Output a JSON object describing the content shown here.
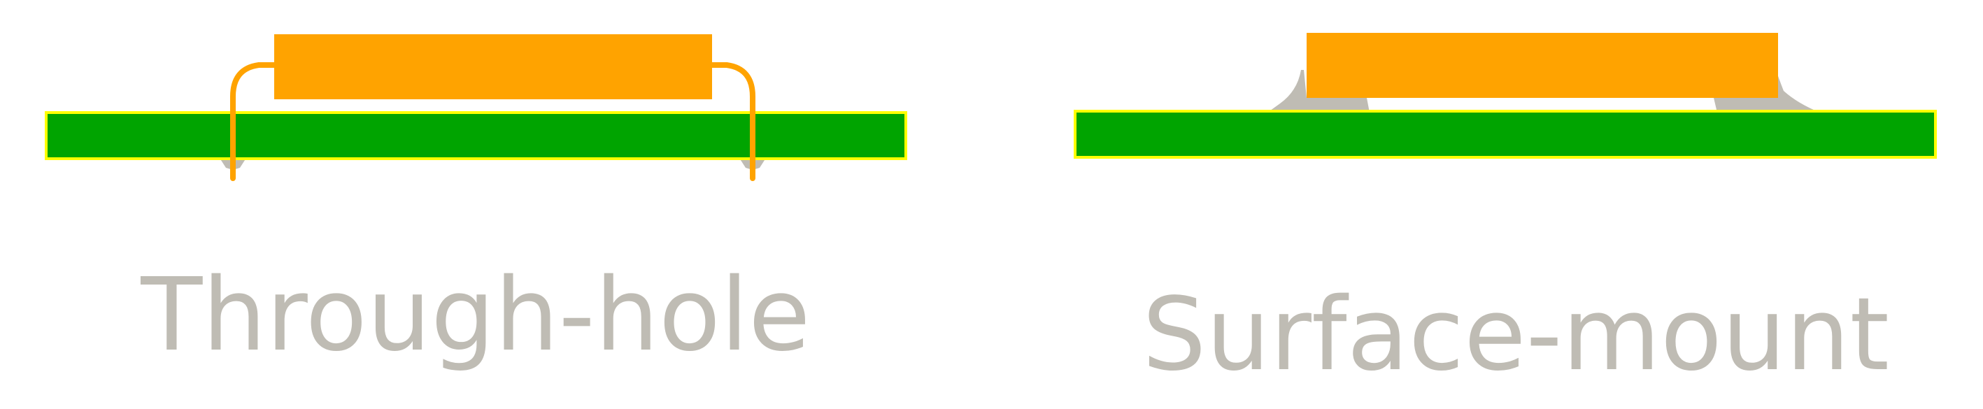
{
  "labels": {
    "through_hole": "Through-hole",
    "surface_mount": "Surface-mount"
  },
  "colors": {
    "board": "#00a400",
    "board_outline": "#ffff00",
    "component": "#ffa300",
    "solder": "#bfbcb4",
    "label_text": "#bfbcb4"
  }
}
